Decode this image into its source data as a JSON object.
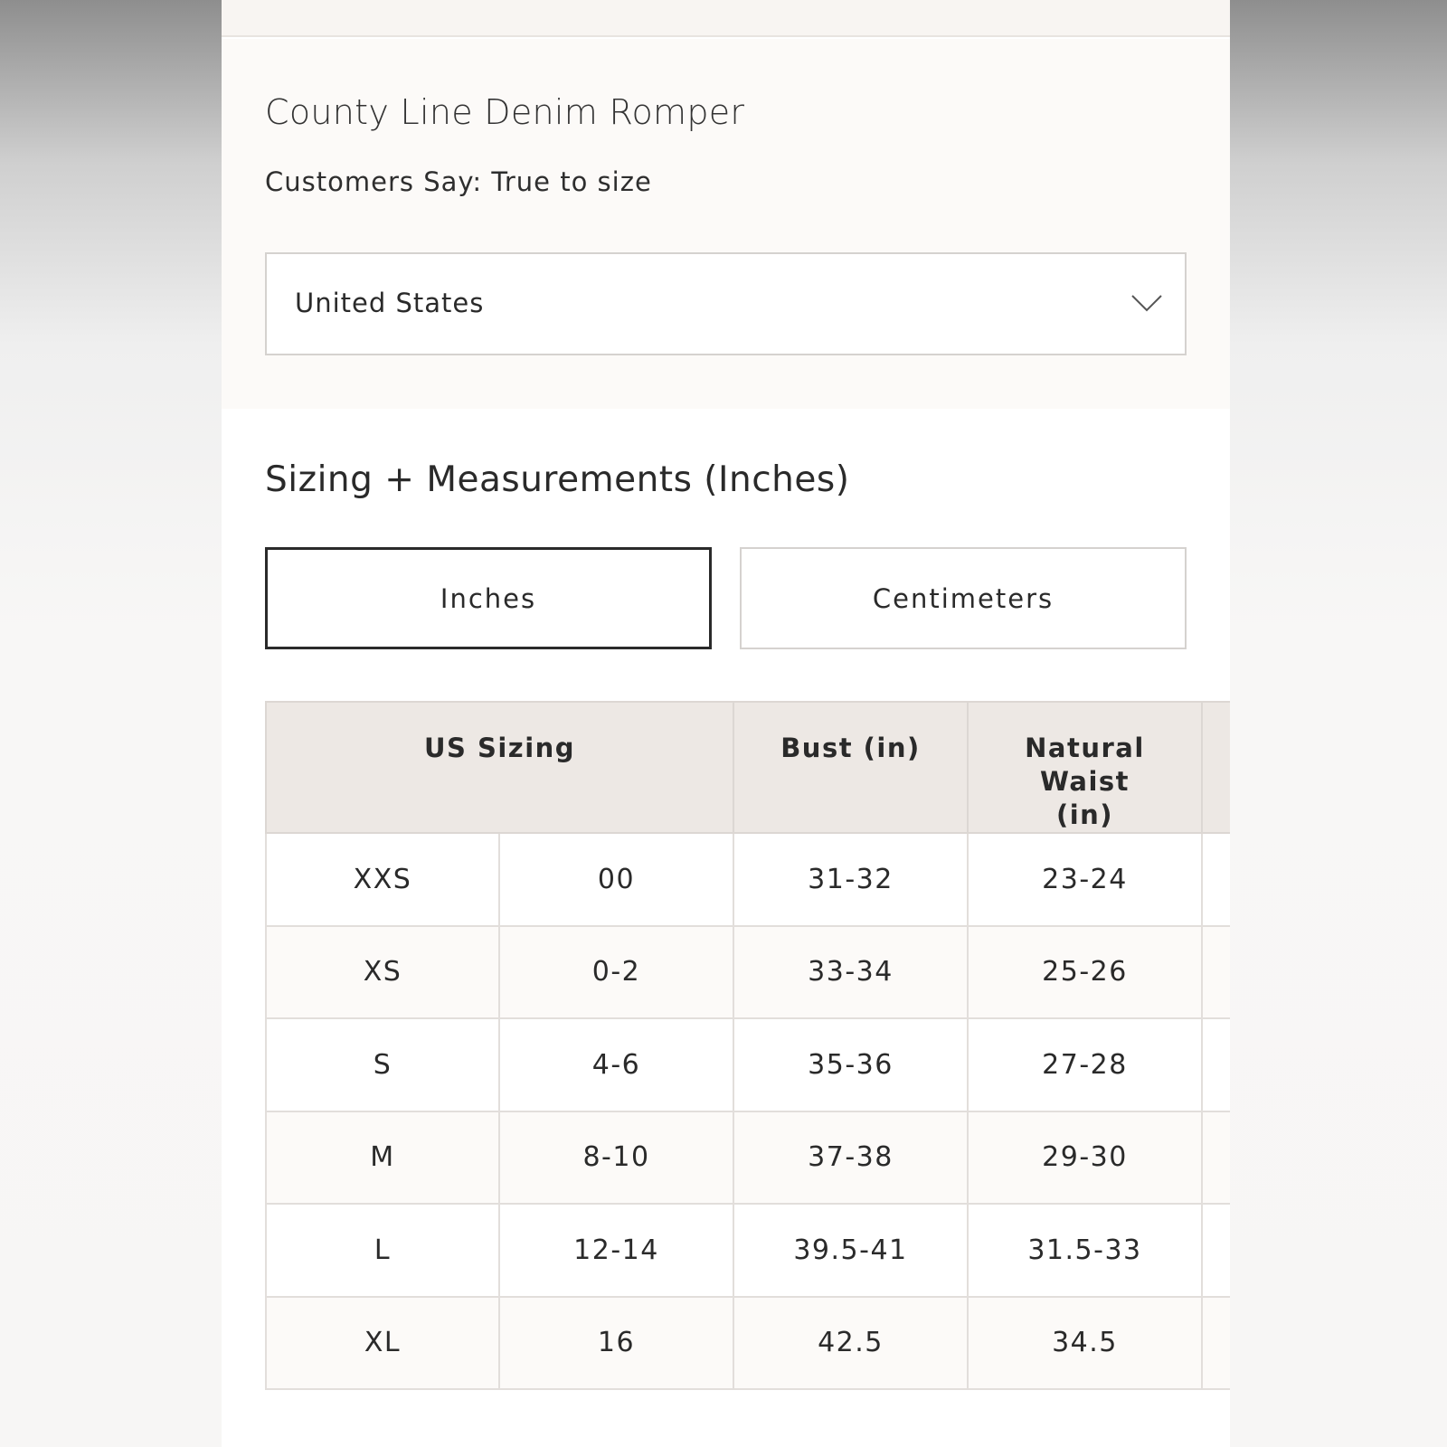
{
  "product": {
    "title": "County Line Denim Romper",
    "fit_note": "Customers Say: True to size"
  },
  "region_select": {
    "value": "United States",
    "icon": "chevron-down-icon"
  },
  "sizing": {
    "heading": "Sizing + Measurements (Inches)",
    "unit_toggle": {
      "inches": "Inches",
      "centimeters": "Centimeters",
      "selected": "Inches"
    },
    "table": {
      "headers": [
        "US Sizing",
        "Bust (in)",
        "Natural Waist (in)"
      ],
      "rows": [
        {
          "size": "XXS",
          "us": "00",
          "bust": "31-32",
          "waist": "23-24"
        },
        {
          "size": "XS",
          "us": "0-2",
          "bust": "33-34",
          "waist": "25-26"
        },
        {
          "size": "S",
          "us": "4-6",
          "bust": "35-36",
          "waist": "27-28"
        },
        {
          "size": "M",
          "us": "8-10",
          "bust": "37-38",
          "waist": "29-30"
        },
        {
          "size": "L",
          "us": "12-14",
          "bust": "39.5-41",
          "waist": "31.5-33"
        },
        {
          "size": "XL",
          "us": "16",
          "bust": "42.5",
          "waist": "34.5"
        }
      ]
    }
  }
}
